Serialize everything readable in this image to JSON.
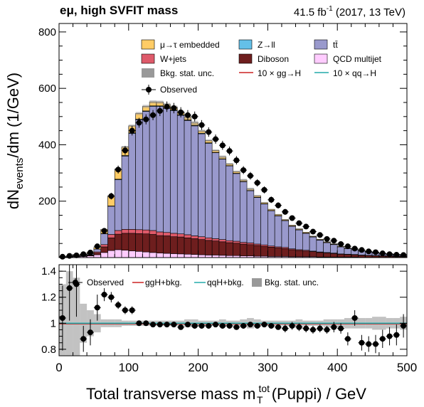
{
  "header": {
    "channel": "eμ, high SVFIT mass",
    "lumi_value": "41.5 fb",
    "lumi_exp": "-1",
    "lumi_rest": " (2017, 13 TeV)"
  },
  "chart_data": [
    {
      "type": "area",
      "panel": "main",
      "ylabel": {
        "base": "dN",
        "sub": "events",
        "rest": "/dm (1/GeV)"
      },
      "xlabel": {
        "base": "Total transverse mass m",
        "sup": "tot",
        "sub": "T",
        "rest": " (Puppi) / GeV"
      },
      "xlim": [
        0,
        500
      ],
      "ylim": [
        0,
        830
      ],
      "xticks": [
        0,
        100,
        200,
        300,
        400,
        500
      ],
      "yticks": [
        200,
        400,
        600,
        800
      ],
      "bin_width": 10,
      "bin_edges_start": 0,
      "stack": [
        {
          "name": "QCD multijet",
          "color": "#FFCCFF",
          "values": [
            1,
            2,
            3,
            4,
            6,
            10,
            18,
            25,
            28,
            26,
            24,
            22,
            20,
            18,
            16,
            15,
            14,
            13,
            12,
            11,
            10,
            9,
            9,
            8,
            7,
            7,
            6,
            6,
            5,
            5,
            4,
            4,
            4,
            3,
            3,
            3,
            3,
            2,
            2,
            2,
            2,
            2,
            2,
            1,
            1,
            1,
            1,
            1,
            1,
            1
          ]
        },
        {
          "name": "Diboson",
          "color": "#6E1E1E",
          "values": [
            0,
            0,
            0,
            1,
            2,
            6,
            20,
            45,
            55,
            60,
            62,
            63,
            64,
            64,
            62,
            62,
            60,
            60,
            58,
            56,
            54,
            52,
            50,
            48,
            46,
            44,
            42,
            40,
            38,
            35,
            33,
            30,
            28,
            25,
            22,
            20,
            18,
            16,
            14,
            12,
            10,
            9,
            8,
            7,
            6,
            5,
            4,
            4,
            3,
            3
          ]
        },
        {
          "name": "W+jets",
          "color": "#DE5A6A",
          "values": [
            0,
            0,
            0,
            1,
            2,
            4,
            8,
            12,
            13,
            14,
            14,
            14,
            14,
            14,
            13,
            12,
            12,
            11,
            11,
            10,
            10,
            9,
            8,
            8,
            7,
            7,
            6,
            6,
            5,
            5,
            4,
            4,
            4,
            3,
            3,
            3,
            2,
            2,
            2,
            2,
            1,
            1,
            1,
            1,
            1,
            1,
            1,
            1,
            1,
            1
          ]
        },
        {
          "name": "tt̄",
          "color": "#9999CC",
          "values": [
            0,
            1,
            2,
            3,
            4,
            10,
            38,
            100,
            180,
            260,
            340,
            390,
            420,
            440,
            445,
            440,
            435,
            420,
            405,
            390,
            365,
            335,
            305,
            285,
            265,
            240,
            215,
            185,
            165,
            145,
            125,
            110,
            95,
            80,
            70,
            60,
            50,
            42,
            35,
            30,
            25,
            20,
            17,
            14,
            12,
            10,
            8,
            7,
            6,
            5
          ]
        },
        {
          "name": "Z→ll",
          "color": "#64C0E8",
          "values": [
            0,
            0,
            0,
            0,
            0,
            0,
            1,
            1,
            2,
            2,
            2,
            2,
            2,
            2,
            2,
            2,
            2,
            2,
            2,
            2,
            2,
            2,
            1,
            1,
            1,
            1,
            1,
            1,
            1,
            1,
            1,
            1,
            1,
            1,
            1,
            1,
            1,
            1,
            1,
            1,
            0,
            0,
            0,
            0,
            0,
            0,
            0,
            0,
            0,
            0
          ]
        },
        {
          "name": "μ→τ embedded",
          "color": "#FFCC66",
          "values": [
            0,
            1,
            2,
            3,
            4,
            6,
            15,
            35,
            35,
            30,
            25,
            20,
            16,
            14,
            13,
            12,
            11,
            10,
            10,
            9,
            8,
            8,
            7,
            7,
            6,
            6,
            5,
            5,
            5,
            4,
            4,
            4,
            3,
            3,
            3,
            3,
            2,
            2,
            2,
            2,
            2,
            2,
            1,
            1,
            1,
            1,
            1,
            1,
            1,
            1
          ]
        }
      ],
      "observed": {
        "name": "Observed",
        "x": [
          5,
          15,
          25,
          35,
          45,
          55,
          65,
          75,
          85,
          95,
          105,
          115,
          125,
          135,
          145,
          155,
          165,
          175,
          185,
          195,
          205,
          215,
          225,
          235,
          245,
          255,
          265,
          275,
          285,
          295,
          305,
          315,
          325,
          335,
          345,
          355,
          365,
          375,
          385,
          395,
          405,
          415,
          425,
          435,
          445,
          455,
          465,
          475,
          485,
          495
        ],
        "y": [
          3,
          6,
          8,
          12,
          18,
          40,
          95,
          218,
          312,
          380,
          450,
          478,
          490,
          505,
          520,
          535,
          530,
          515,
          505,
          500,
          470,
          445,
          420,
          398,
          378,
          345,
          310,
          290,
          265,
          240,
          205,
          185,
          162,
          140,
          122,
          110,
          92,
          80,
          66,
          60,
          48,
          40,
          32,
          27,
          22,
          19,
          15,
          12,
          10,
          9
        ]
      },
      "legend": [
        {
          "label": "μ→τ embedded",
          "kind": "box",
          "color": "#FFCC66"
        },
        {
          "label": "Z→ll",
          "kind": "box",
          "color": "#64C0E8"
        },
        {
          "label": "tt̄",
          "kind": "box",
          "color": "#9999CC"
        },
        {
          "label": "W+jets",
          "kind": "box",
          "color": "#DE5A6A"
        },
        {
          "label": "Diboson",
          "kind": "box",
          "color": "#6E1E1E"
        },
        {
          "label": "QCD multijet",
          "kind": "box",
          "color": "#FFCCFF"
        },
        {
          "label": "Bkg. stat. unc.",
          "kind": "box",
          "color": "#999999"
        },
        {
          "label": "10 × gg→H",
          "kind": "line",
          "color": "#CC2222"
        },
        {
          "label": "10 × qq→H",
          "kind": "line",
          "color": "#22AAAA"
        },
        {
          "label": "Observed",
          "kind": "marker",
          "color": "#000000"
        }
      ]
    },
    {
      "type": "scatter",
      "panel": "ratio",
      "xlim": [
        0,
        500
      ],
      "ylim": [
        0.75,
        1.45
      ],
      "xticks": [
        0,
        100,
        200,
        300,
        400,
        500
      ],
      "yticks": [
        0.8,
        1,
        1.2,
        1.4
      ],
      "ratio": {
        "x": [
          5,
          15,
          25,
          35,
          45,
          55,
          65,
          75,
          85,
          95,
          105,
          115,
          125,
          135,
          145,
          155,
          165,
          175,
          185,
          195,
          205,
          215,
          225,
          235,
          245,
          255,
          265,
          275,
          285,
          295,
          305,
          315,
          325,
          335,
          345,
          355,
          365,
          375,
          385,
          395,
          405,
          415,
          425,
          435,
          445,
          455,
          465,
          475,
          485,
          495
        ],
        "y": [
          1.04,
          1.27,
          1.3,
          0.88,
          0.93,
          1.12,
          1.22,
          1.2,
          1.14,
          1.1,
          1.1,
          1.0,
          1.0,
          0.99,
          0.99,
          0.99,
          0.99,
          0.97,
          0.99,
          0.98,
          0.98,
          0.98,
          0.99,
          0.98,
          0.98,
          0.97,
          0.98,
          0.99,
          0.98,
          0.99,
          0.98,
          0.97,
          0.96,
          0.98,
          0.97,
          0.96,
          0.95,
          0.96,
          0.95,
          0.97,
          0.96,
          0.88,
          1.04,
          0.85,
          0.84,
          0.84,
          0.88,
          0.9,
          0.91,
          0.98
        ],
        "err": [
          0.25,
          0.25,
          0.25,
          0.1,
          0.1,
          0.1,
          0.05,
          0.04,
          0.03,
          0.03,
          0.03,
          0.02,
          0.02,
          0.02,
          0.02,
          0.02,
          0.02,
          0.02,
          0.02,
          0.02,
          0.02,
          0.02,
          0.02,
          0.02,
          0.02,
          0.02,
          0.02,
          0.02,
          0.02,
          0.02,
          0.02,
          0.02,
          0.03,
          0.03,
          0.03,
          0.03,
          0.03,
          0.03,
          0.03,
          0.04,
          0.04,
          0.05,
          0.06,
          0.06,
          0.06,
          0.07,
          0.07,
          0.07,
          0.08,
          0.09
        ]
      },
      "stat_unc": [
        0.3,
        0.4,
        0.35,
        0.15,
        0.1,
        0.07,
        0.03,
        0.03,
        0.03,
        0.02,
        0.02,
        0.02,
        0.02,
        0.02,
        0.02,
        0.02,
        0.02,
        0.02,
        0.03,
        0.03,
        0.02,
        0.02,
        0.02,
        0.03,
        0.02,
        0.02,
        0.03,
        0.04,
        0.03,
        0.02,
        0.02,
        0.02,
        0.02,
        0.02,
        0.03,
        0.02,
        0.02,
        0.02,
        0.03,
        0.03,
        0.03,
        0.04,
        0.04,
        0.04,
        0.04,
        0.05,
        0.05,
        0.04,
        0.04,
        0.05
      ],
      "ggh_ratio": 0.995,
      "qqh_ratio": 1.0,
      "legend": [
        {
          "label": "Observed",
          "kind": "marker",
          "color": "#000000"
        },
        {
          "label": "ggH+bkg.",
          "kind": "line",
          "color": "#CC2222"
        },
        {
          "label": "qqH+bkg.",
          "kind": "line",
          "color": "#22AAAA"
        },
        {
          "label": "Bkg. stat. unc.",
          "kind": "box",
          "color": "#999999"
        }
      ]
    }
  ]
}
